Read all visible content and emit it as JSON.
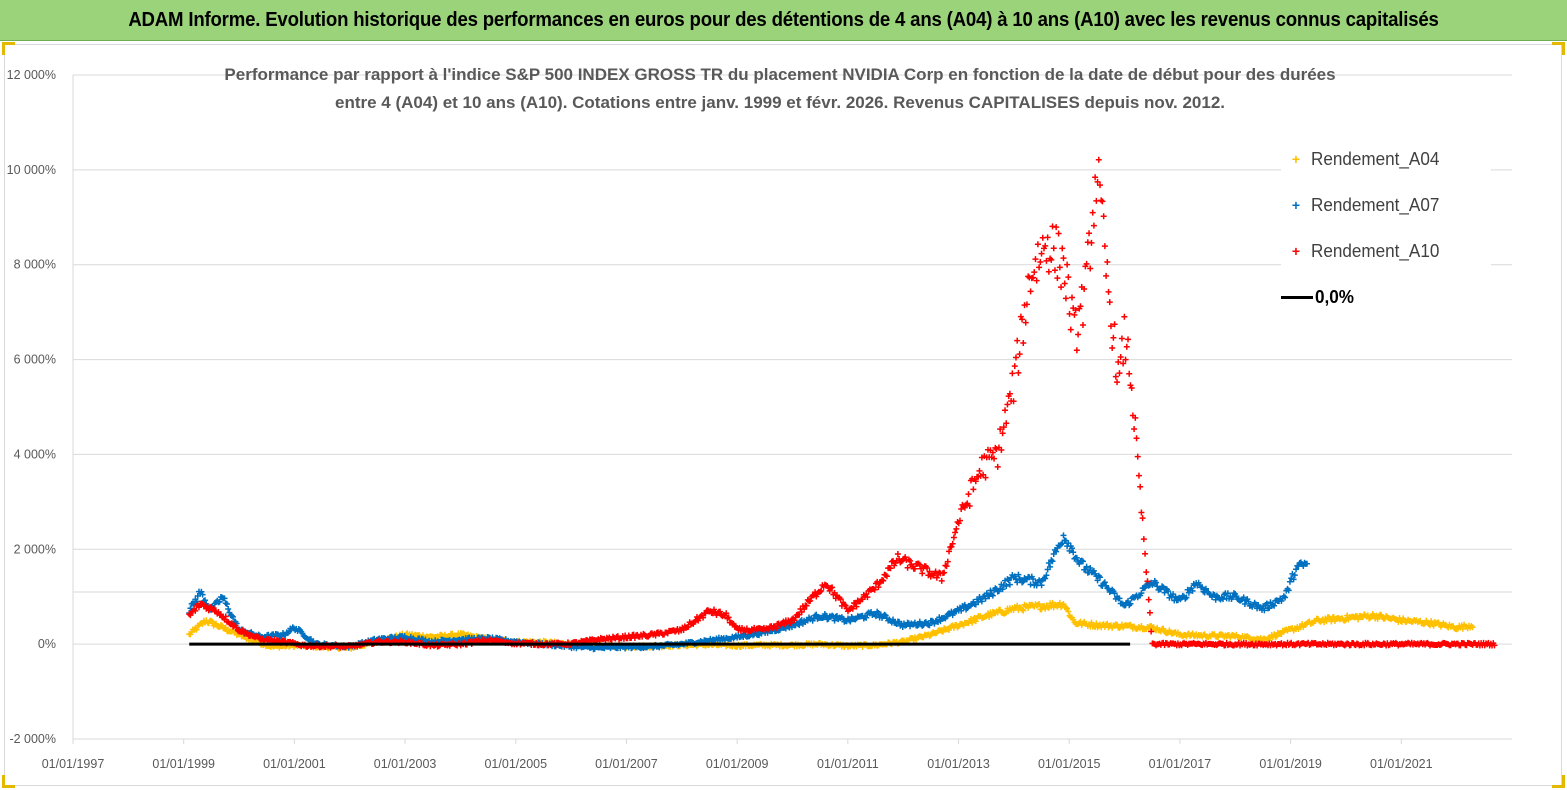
{
  "window": {
    "banner": "ADAM Informe. Evolution historique des performances en euros pour des détentions de 4 ans (A04) à 10 ans (A10) avec les revenus connus capitalisés"
  },
  "colors": {
    "banner_bg": "#9bd37a",
    "a04": "#ffc000",
    "a07": "#0070c0",
    "a10": "#ff0000",
    "zero": "#000000",
    "grid": "#d9d9d9"
  },
  "chart_data": {
    "type": "scatter",
    "title_line1": "Performance par rapport à l'indice S&P 500 INDEX GROSS TR  du placement NVIDIA Corp en fonction de la date de début pour des durées",
    "title_line2": "entre 4 (A04) et 10 ans (A10). Cotations entre janv. 1999 et févr. 2026. Revenus CAPITALISES depuis nov. 2012.",
    "xlabel": "",
    "ylabel": "",
    "y_unit": "%",
    "ylim": [
      -2000,
      12000
    ],
    "xlim": [
      1997.0,
      2023.0
    ],
    "y_ticks": [
      "12 000%",
      "10 000%",
      "8 000%",
      "6 000%",
      "4 000%",
      "2 000%",
      "0%",
      "-2 000%"
    ],
    "y_tick_values": [
      12000,
      10000,
      8000,
      6000,
      4000,
      2000,
      0,
      -2000
    ],
    "x_ticks": [
      "01/01/1997",
      "01/01/1999",
      "01/01/2001",
      "01/01/2003",
      "01/01/2005",
      "01/01/2007",
      "01/01/2009",
      "01/01/2011",
      "01/01/2013",
      "01/01/2015",
      "01/01/2017",
      "01/01/2019",
      "01/01/2021"
    ],
    "x_tick_values": [
      1997,
      1999,
      2001,
      2003,
      2005,
      2007,
      2009,
      2011,
      2013,
      2015,
      2017,
      2019,
      2021
    ],
    "legend_position": "top-right",
    "legend": [
      "Rendement_A04",
      "Rendement_A07",
      "Rendement_A10",
      "0,0%"
    ],
    "series": [
      {
        "name": "Rendement_A04",
        "color": "#ffc000",
        "points": [
          [
            1999.1,
            200
          ],
          [
            1999.4,
            500
          ],
          [
            1999.7,
            350
          ],
          [
            2000.0,
            200
          ],
          [
            2000.3,
            50
          ],
          [
            2000.6,
            -50
          ],
          [
            2001.0,
            -30
          ],
          [
            2001.4,
            -50
          ],
          [
            2002.0,
            -80
          ],
          [
            2002.5,
            50
          ],
          [
            2003.0,
            200
          ],
          [
            2003.5,
            150
          ],
          [
            2004.0,
            200
          ],
          [
            2004.5,
            100
          ],
          [
            2005.0,
            50
          ],
          [
            2005.5,
            40
          ],
          [
            2006.0,
            0
          ],
          [
            2006.5,
            -30
          ],
          [
            2007.0,
            -50
          ],
          [
            2007.5,
            -40
          ],
          [
            2008.0,
            -20
          ],
          [
            2008.5,
            -10
          ],
          [
            2009.0,
            -30
          ],
          [
            2009.5,
            -20
          ],
          [
            2010.0,
            -20
          ],
          [
            2010.5,
            0
          ],
          [
            2011.0,
            -40
          ],
          [
            2011.5,
            -20
          ],
          [
            2012.0,
            50
          ],
          [
            2012.5,
            200
          ],
          [
            2013.0,
            400
          ],
          [
            2013.5,
            600
          ],
          [
            2014.0,
            750
          ],
          [
            2014.5,
            800
          ],
          [
            2014.9,
            850
          ],
          [
            2015.1,
            450
          ],
          [
            2015.5,
            400
          ],
          [
            2016.0,
            380
          ],
          [
            2016.5,
            350
          ],
          [
            2017.0,
            200
          ],
          [
            2017.5,
            180
          ],
          [
            2018.0,
            170
          ],
          [
            2018.5,
            100
          ],
          [
            2019.0,
            300
          ],
          [
            2019.5,
            500
          ],
          [
            2020.0,
            550
          ],
          [
            2020.5,
            600
          ],
          [
            2021.0,
            500
          ],
          [
            2021.5,
            450
          ],
          [
            2022.0,
            350
          ],
          [
            2022.3,
            400
          ]
        ]
      },
      {
        "name": "Rendement_A07",
        "color": "#0070c0",
        "points": [
          [
            1999.1,
            700
          ],
          [
            1999.3,
            1100
          ],
          [
            1999.5,
            700
          ],
          [
            1999.7,
            1000
          ],
          [
            2000.0,
            300
          ],
          [
            2000.4,
            150
          ],
          [
            2000.8,
            200
          ],
          [
            2001.0,
            350
          ],
          [
            2001.4,
            0
          ],
          [
            2002.0,
            -50
          ],
          [
            2002.5,
            100
          ],
          [
            2003.0,
            150
          ],
          [
            2003.5,
            50
          ],
          [
            2004.0,
            100
          ],
          [
            2004.5,
            120
          ],
          [
            2005.0,
            50
          ],
          [
            2005.5,
            0
          ],
          [
            2006.0,
            -50
          ],
          [
            2006.5,
            -80
          ],
          [
            2007.0,
            -60
          ],
          [
            2007.5,
            -50
          ],
          [
            2008.0,
            0
          ],
          [
            2008.5,
            80
          ],
          [
            2009.0,
            150
          ],
          [
            2009.5,
            250
          ],
          [
            2010.0,
            400
          ],
          [
            2010.5,
            600
          ],
          [
            2011.0,
            500
          ],
          [
            2011.5,
            650
          ],
          [
            2012.0,
            400
          ],
          [
            2012.5,
            450
          ],
          [
            2013.0,
            700
          ],
          [
            2013.5,
            1000
          ],
          [
            2014.0,
            1400
          ],
          [
            2014.5,
            1300
          ],
          [
            2014.9,
            2300
          ],
          [
            2015.2,
            1700
          ],
          [
            2015.6,
            1300
          ],
          [
            2016.0,
            800
          ],
          [
            2016.5,
            1300
          ],
          [
            2017.0,
            900
          ],
          [
            2017.3,
            1300
          ],
          [
            2017.6,
            1000
          ],
          [
            2018.0,
            1000
          ],
          [
            2018.5,
            750
          ],
          [
            2018.9,
            1000
          ],
          [
            2019.1,
            1600
          ],
          [
            2019.3,
            1700
          ]
        ]
      },
      {
        "name": "Rendement_A10",
        "color": "#ff0000",
        "points": [
          [
            1999.1,
            600
          ],
          [
            1999.3,
            850
          ],
          [
            1999.6,
            700
          ],
          [
            2000.0,
            300
          ],
          [
            2000.4,
            100
          ],
          [
            2000.8,
            50
          ],
          [
            2001.2,
            -30
          ],
          [
            2002.0,
            -50
          ],
          [
            2002.5,
            50
          ],
          [
            2003.0,
            50
          ],
          [
            2003.5,
            -30
          ],
          [
            2004.0,
            0
          ],
          [
            2004.5,
            80
          ],
          [
            2005.0,
            20
          ],
          [
            2005.5,
            0
          ],
          [
            2006.0,
            10
          ],
          [
            2006.5,
            100
          ],
          [
            2007.0,
            150
          ],
          [
            2007.5,
            200
          ],
          [
            2008.0,
            300
          ],
          [
            2008.5,
            700
          ],
          [
            2008.8,
            600
          ],
          [
            2009.0,
            300
          ],
          [
            2009.5,
            300
          ],
          [
            2010.0,
            500
          ],
          [
            2010.6,
            1300
          ],
          [
            2011.0,
            700
          ],
          [
            2011.5,
            1200
          ],
          [
            2011.9,
            1800
          ],
          [
            2012.3,
            1600
          ],
          [
            2012.7,
            1400
          ],
          [
            2013.0,
            2600
          ],
          [
            2013.4,
            3700
          ],
          [
            2013.7,
            4000
          ],
          [
            2014.0,
            5500
          ],
          [
            2014.3,
            7800
          ],
          [
            2014.6,
            8500
          ],
          [
            2014.9,
            8000
          ],
          [
            2015.1,
            6500
          ],
          [
            2015.3,
            7500
          ],
          [
            2015.5,
            10000
          ],
          [
            2015.7,
            7500
          ],
          [
            2015.9,
            5500
          ],
          [
            2016.0,
            6500
          ],
          [
            2016.1,
            5800
          ],
          [
            2016.5,
            0
          ],
          [
            2017.5,
            0
          ],
          [
            2018.5,
            0
          ],
          [
            2019.5,
            0
          ],
          [
            2020.5,
            0
          ],
          [
            2021.5,
            0
          ],
          [
            2022.7,
            0
          ]
        ]
      },
      {
        "name": "0,0%",
        "color": "#000000",
        "points": [
          [
            1999.1,
            0
          ],
          [
            2016.1,
            0
          ]
        ]
      }
    ]
  }
}
